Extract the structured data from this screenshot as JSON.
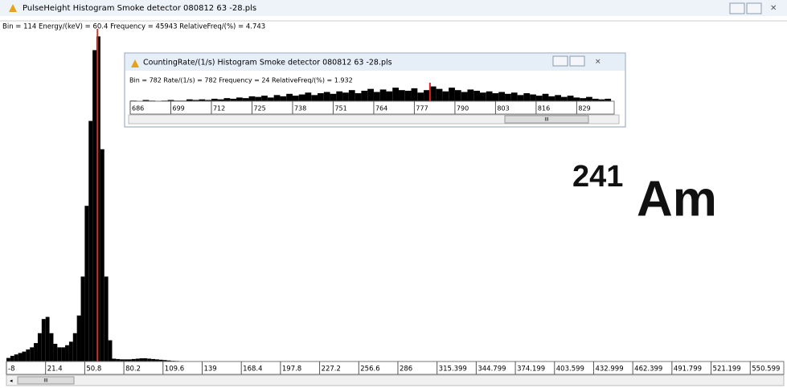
{
  "main_window": {
    "title": "PulseHeight Histogram   Smoke detector 080812 63 -28.pls",
    "status": "Bin = 114  Energy/(keV) = 60.4  Frequency = 45943  RelativeFreq/(%) = 4.743",
    "scroll_label": "III",
    "histogram": {
      "type": "histogram",
      "bins": [
        -8,
        -5.06,
        -2.12,
        0.82,
        3.76,
        6.7,
        9.64,
        12.58,
        15.52,
        18.46,
        21.4,
        24.34,
        27.28,
        30.22,
        33.16,
        36.1,
        39.04,
        41.98,
        44.92,
        47.86,
        50.8,
        53.74,
        56.68,
        59.62,
        62.56,
        65.5,
        68.44,
        71.38,
        74.32,
        77.26,
        80.2,
        83.14,
        86.08,
        89.02,
        91.96,
        94.9,
        97.84,
        100.78,
        103.72,
        106.66,
        109.6,
        112.54,
        115.48,
        118.42,
        121.36,
        124.3,
        127.24,
        130.18,
        133.12,
        136.06,
        139
      ],
      "values": [
        500,
        800,
        1000,
        1200,
        1400,
        1700,
        2000,
        2600,
        4000,
        6000,
        6300,
        4000,
        2500,
        2000,
        2000,
        2300,
        2800,
        4000,
        6500,
        12000,
        22000,
        34000,
        44000,
        45943,
        30000,
        12000,
        3000,
        400,
        350,
        300,
        300,
        300,
        350,
        400,
        450,
        450,
        400,
        350,
        300,
        250,
        200,
        150,
        100,
        80,
        60,
        40,
        30,
        20,
        10,
        0
      ],
      "color": "#000000",
      "cursor": 60.4,
      "cursor_color": "#c0392b",
      "xlim": [
        -8,
        575.8
      ],
      "ylim": [
        0,
        47000
      ],
      "xticks": [
        -8,
        21.4,
        50.8,
        80.2,
        109.6,
        139,
        168.4,
        197.8,
        227.2,
        256.6,
        286,
        315.399,
        344.799,
        374.199,
        403.599,
        432.999,
        462.399,
        491.799,
        521.199,
        550.599
      ]
    }
  },
  "child_window": {
    "title": "CountingRate/(1/s) Histogram   Smoke detector 080812 63 -28.pls",
    "status": "Bin = 782  Rate/(1/s) = 782  Frequency = 24  RelativeFreq/(%) = 1.932",
    "scroll_label": "III",
    "histogram": {
      "type": "histogram",
      "bins": [
        686,
        688,
        690,
        692,
        694,
        696,
        698,
        700,
        702,
        704,
        706,
        708,
        710,
        712,
        714,
        716,
        718,
        720,
        722,
        724,
        726,
        728,
        730,
        732,
        734,
        736,
        738,
        740,
        742,
        744,
        746,
        748,
        750,
        752,
        754,
        756,
        758,
        760,
        762,
        764,
        766,
        768,
        770,
        772,
        774,
        776,
        778,
        780,
        782,
        784,
        786,
        788,
        790,
        792,
        794,
        796,
        798,
        800,
        802,
        804,
        806,
        808,
        810,
        812,
        814,
        816,
        818,
        820,
        822,
        824,
        826,
        828,
        830,
        832,
        834,
        836,
        838,
        840
      ],
      "values": [
        1,
        0,
        2,
        1,
        0,
        1,
        2,
        1,
        1,
        3,
        2,
        3,
        2,
        4,
        3,
        5,
        4,
        6,
        5,
        8,
        7,
        9,
        6,
        10,
        8,
        12,
        9,
        11,
        14,
        10,
        13,
        15,
        12,
        16,
        14,
        18,
        13,
        17,
        20,
        15,
        19,
        16,
        22,
        18,
        17,
        21,
        14,
        18,
        24,
        20,
        16,
        22,
        18,
        15,
        19,
        17,
        14,
        16,
        13,
        15,
        12,
        14,
        10,
        13,
        11,
        9,
        12,
        8,
        10,
        7,
        9,
        6,
        5,
        7,
        4,
        3,
        4
      ],
      "color": "#000000",
      "cursor": 782,
      "cursor_color": "#e0202a",
      "xlim": [
        686,
        841
      ],
      "ylim": [
        0,
        30
      ],
      "xticks": [
        686,
        699,
        712,
        725,
        738,
        751,
        764,
        777,
        790,
        803,
        816,
        829
      ]
    }
  },
  "annotation": {
    "mass_number": "241",
    "element": "Am"
  }
}
